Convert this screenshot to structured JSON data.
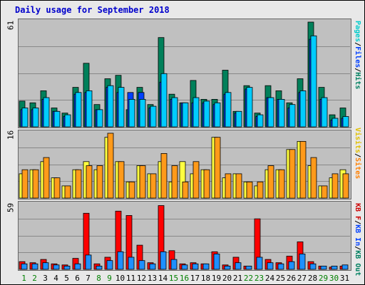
{
  "chart_data": {
    "type": "bar",
    "title": "Daily usage for September 2018",
    "categories": [
      "1",
      "2",
      "3",
      "4",
      "5",
      "6",
      "7",
      "8",
      "9",
      "10",
      "11",
      "12",
      "13",
      "14",
      "15",
      "16",
      "17",
      "18",
      "19",
      "20",
      "21",
      "22",
      "23",
      "24",
      "25",
      "26",
      "27",
      "28",
      "29",
      "30",
      "31"
    ],
    "weekend_days": [
      "1",
      "2",
      "8",
      "9",
      "15",
      "16",
      "22",
      "23",
      "29",
      "30"
    ],
    "panels": [
      {
        "name": "pages-files-hits",
        "axis_max_label": "61",
        "ymax": 61,
        "legend": [
          {
            "text": "Pages",
            "color": "#00cccc"
          },
          {
            "text": "/",
            "color": "#000000"
          },
          {
            "text": "Files",
            "color": "#0040ff"
          },
          {
            "text": "/",
            "color": "#000000"
          },
          {
            "text": "Hits",
            "color": "#008060"
          }
        ],
        "series": [
          {
            "name": "Hits",
            "color": "#00805a",
            "values": [
              15,
              14,
              21,
              11,
              8,
              23,
              37,
              13,
              28,
              30,
              10,
              23,
              13,
              52,
              19,
              14,
              27,
              16,
              16,
              33,
              9,
              24,
              8,
              24,
              21,
              14,
              28,
              61,
              23,
              7,
              11
            ]
          },
          {
            "name": "Files",
            "color": "#0040ff",
            "values": [
              10,
              10,
              16,
              9,
              6,
              19,
              20,
              10,
              23,
              20,
              20,
              20,
              11,
              26,
              16,
              14,
              14,
              14,
              13,
              19,
              8,
              22,
              6,
              17,
              16,
              11,
              20,
              51,
              16,
              4,
              5
            ]
          },
          {
            "name": "Pages",
            "color": "#00ccff",
            "values": [
              11,
              11,
              17,
              9,
              7,
              20,
              21,
              10,
              24,
              23,
              16,
              16,
              12,
              31,
              17,
              14,
              17,
              15,
              14,
              20,
              9,
              23,
              7,
              17,
              16,
              13,
              21,
              53,
              17,
              5,
              6
            ]
          }
        ]
      },
      {
        "name": "visits-sites",
        "axis_max_label": "16",
        "ymax": 16,
        "legend": [
          {
            "text": "Visits",
            "color": "#e0c000"
          },
          {
            "text": "/",
            "color": "#000000"
          },
          {
            "text": "Sites",
            "color": "#ff8000"
          }
        ],
        "series": [
          {
            "name": "Visits",
            "color": "#ffff40",
            "values": [
              6,
              7,
              9,
              5,
              3,
              7,
              9,
              7,
              15,
              9,
              4,
              8,
              6,
              9,
              4,
              9,
              6,
              7,
              15,
              5,
              6,
              4,
              3,
              7,
              7,
              12,
              14,
              8,
              3,
              5,
              7
            ]
          },
          {
            "name": "Sites",
            "color": "#ff9a1a",
            "values": [
              7,
              7,
              10,
              5,
              3,
              7,
              8,
              8,
              16,
              9,
              4,
              8,
              6,
              11,
              8,
              4,
              9,
              7,
              15,
              6,
              6,
              4,
              4,
              8,
              7,
              12,
              14,
              10,
              3,
              6,
              6
            ]
          }
        ]
      },
      {
        "name": "kbf-kbin-kbout",
        "axis_max_label": "59",
        "ymax": 59,
        "legend": [
          {
            "text": "KB F",
            "color": "#cc0000"
          },
          {
            "text": "/",
            "color": "#000000"
          },
          {
            "text": "KB In",
            "color": "#0040ff"
          },
          {
            "text": "/",
            "color": "#000000"
          },
          {
            "text": "KB Out",
            "color": "#008060"
          }
        ],
        "series": [
          {
            "name": "KB F",
            "color": "#ff0000",
            "values": [
              7,
              6,
              9,
              5,
              4,
              10,
              51,
              5,
              11,
              53,
              49,
              22,
              6,
              58,
              17,
              5,
              6,
              5,
              16,
              4,
              11,
              3,
              46,
              9,
              6,
              12,
              25,
              7,
              3,
              2,
              3
            ]
          },
          {
            "name": "KB In",
            "color": "#1e90ff",
            "values": [
              5,
              5,
              6,
              4,
              3,
              5,
              13,
              3,
              8,
              16,
              11,
              8,
              5,
              16,
              9,
              4,
              5,
              5,
              14,
              3,
              6,
              3,
              11,
              6,
              5,
              7,
              14,
              5,
              3,
              3,
              4
            ]
          }
        ]
      }
    ]
  }
}
